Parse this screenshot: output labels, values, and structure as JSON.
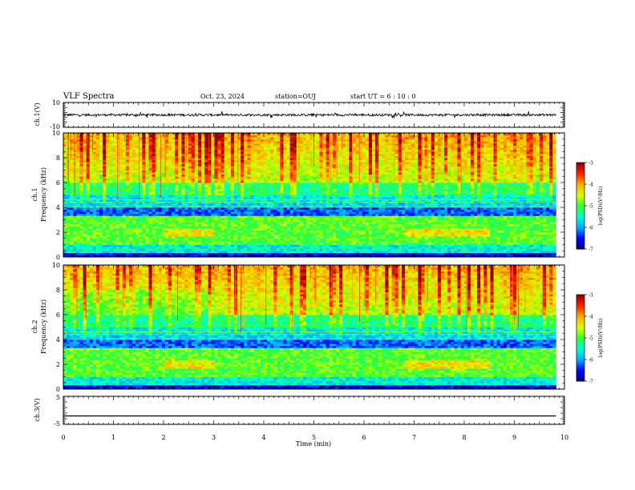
{
  "header": {
    "title": "VLF Spectra",
    "date": "Oct. 23, 2024",
    "station": "station=OUJ",
    "start": "start UT =  6 : 10 : 0"
  },
  "colors": {
    "colormap": [
      "#00007a",
      "#0000ff",
      "#00a8ff",
      "#00ffd8",
      "#30ff30",
      "#d8ff00",
      "#ffb000",
      "#ff2000",
      "#900000"
    ]
  },
  "chart_data": [
    {
      "type": "line",
      "ylabel": "ch.1(V)",
      "ylim": [
        -10,
        10
      ],
      "yticks": [
        "10",
        "-10"
      ],
      "ytick_values": [
        10,
        -10
      ],
      "xlim": [
        0,
        10
      ],
      "baseline": 0,
      "noise": 0.9
    },
    {
      "type": "heatmap",
      "ylabel_line1": "ch.1",
      "ylabel_line2": "Frequency (kHz)",
      "ylim": [
        0,
        10
      ],
      "yticks": [
        "0",
        "2",
        "4",
        "6",
        "8",
        "10"
      ],
      "ytick_values": [
        0,
        2,
        4,
        6,
        8,
        10
      ],
      "xlim": [
        0,
        10
      ],
      "data_end_min": 9.83,
      "colorbar_label": "log(PSD)(V²/Hz)",
      "colorbar_range": [
        -7,
        -3
      ],
      "colorbar_ticks": [
        "-3",
        "-4",
        "-5",
        "-6",
        "-7"
      ],
      "colorbar_tick_values": [
        -3,
        -4,
        -5,
        -6,
        -7
      ]
    },
    {
      "type": "heatmap",
      "ylabel_line1": "ch.2",
      "ylabel_line2": "Frequency (kHz)",
      "ylim": [
        0,
        10
      ],
      "yticks": [
        "0",
        "2",
        "4",
        "6",
        "8",
        "10"
      ],
      "ytick_values": [
        0,
        2,
        4,
        6,
        8,
        10
      ],
      "xlim": [
        0,
        10
      ],
      "data_end_min": 9.83,
      "colorbar_label": "log(PSD)(V²/Hz)",
      "colorbar_range": [
        -7,
        -3
      ],
      "colorbar_ticks": [
        "-3",
        "-4",
        "-5",
        "-6",
        "-7"
      ],
      "colorbar_tick_values": [
        -3,
        -4,
        -5,
        -6,
        -7
      ]
    },
    {
      "type": "line",
      "ylabel": "ch.3(V)",
      "ylim": [
        -5,
        5
      ],
      "yticks": [
        "5",
        "-5"
      ],
      "ytick_values": [
        5,
        -5
      ],
      "xlim": [
        0,
        10
      ],
      "baseline": -2.0,
      "noise": 0
    }
  ],
  "xaxis": {
    "label": "Time (min)",
    "ticks": [
      "0",
      "1",
      "2",
      "3",
      "4",
      "5",
      "6",
      "7",
      "8",
      "9",
      "10"
    ],
    "tick_values": [
      0,
      1,
      2,
      3,
      4,
      5,
      6,
      7,
      8,
      9,
      10
    ]
  }
}
